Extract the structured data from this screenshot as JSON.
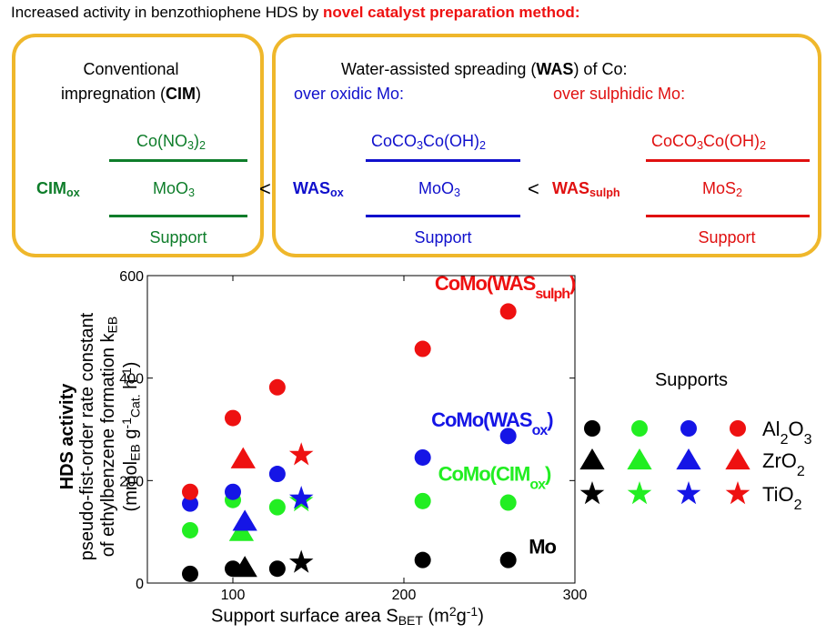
{
  "header": {
    "title_prefix": "Increased activity in benzothiophene HDS by ",
    "title_highlight": "novel catalyst preparation method:"
  },
  "cim_box": {
    "title_line1": "Conventional",
    "title_line2_prefix": "impregnation (",
    "title_line2_bold": "CIM",
    "title_line2_suffix": ")",
    "label_main": "CIM",
    "label_sub": "ox",
    "top_layer_a": "Co(NO",
    "top_layer_sub": "3",
    "top_layer_b": ")",
    "top_layer_sub2": "2",
    "mid_layer": "MoO",
    "mid_layer_sub": "3",
    "support": "Support"
  },
  "lt1": "<",
  "lt2": "<",
  "was_box": {
    "title_prefix": "Water-assisted spreading (",
    "title_bold": "WAS",
    "title_suffix": ") of Co:",
    "oxidic_label": "over oxidic Mo:",
    "sulphidic_label": "over sulphidic Mo:",
    "ox_label_main": "WAS",
    "ox_label_sub": "ox",
    "ox_top_a": "CoCO",
    "ox_top_sub": "3",
    "ox_top_b": "Co(OH)",
    "ox_top_sub2": "2",
    "ox_mid": "MoO",
    "ox_mid_sub": "3",
    "ox_support": "Support",
    "sulph_label_main": "WAS",
    "sulph_label_sub": "sulph",
    "sulph_top_a": "CoCO",
    "sulph_top_sub": "3",
    "sulph_top_b": "Co(OH)",
    "sulph_top_sub2": "2",
    "sulph_mid": "MoS",
    "sulph_mid_sub": "2",
    "sulph_support": "Support"
  },
  "colors": {
    "box_border": "#efb72b",
    "cim": "#0e7d2a",
    "black": "#000000",
    "green": "#22ee22",
    "blue": "#1515e6",
    "red": "#ee1111"
  },
  "chart_data": {
    "type": "scatter",
    "xlabel_prefix": "Support surface area S",
    "xlabel_sub": "BET",
    "xlabel_suffix_a": " (m",
    "xlabel_sup": "2",
    "xlabel_suffix_b": "g",
    "xlabel_sup2": "-1",
    "xlabel_suffix_c": ")",
    "ylabel_line1": "HDS activity",
    "ylabel_line2": "pseudo-fist-order rate constant",
    "ylabel_line3_prefix": "of ethylbenzene formation k",
    "ylabel_line3_sub": "EB",
    "ylabel_line4_a": "(mmol",
    "ylabel_line4_sub1": "EB",
    "ylabel_line4_b": " g",
    "ylabel_line4_sup1": "-1",
    "ylabel_line4_sub2": "Cat.",
    "ylabel_line4_c": " h",
    "ylabel_line4_sup2": "-1",
    "ylabel_line4_d": ")",
    "xlim": [
      50,
      300
    ],
    "ylim": [
      0,
      600
    ],
    "x_ticks": [
      100,
      200,
      300
    ],
    "x_tick_labels": [
      "100",
      "200",
      "300"
    ],
    "y_ticks": [
      0,
      200,
      400,
      600
    ],
    "y_tick_labels": [
      "0",
      "200",
      "400",
      "600"
    ],
    "annotations": [
      {
        "main": "CoMo(WAS",
        "sub": "sulph",
        "end": ")",
        "color": "#ee1111",
        "x": 218,
        "y": 572
      },
      {
        "main": "CoMo(WAS",
        "sub": "ox",
        "end": ")",
        "color": "#1515e6",
        "x": 216,
        "y": 305
      },
      {
        "main": "CoMo(CIM",
        "sub": "ox",
        "end": ")",
        "color": "#22ee22",
        "x": 220,
        "y": 200
      },
      {
        "main": "Mo",
        "sub": "",
        "end": "",
        "color": "#000000",
        "x": 273,
        "y": 58
      }
    ],
    "series": [
      {
        "catalyst": "Mo",
        "support": "Al2O3",
        "marker": "circle",
        "color": "#000000",
        "x": [
          75,
          100,
          126,
          211,
          261
        ],
        "y": [
          18,
          28,
          28,
          45,
          45
        ]
      },
      {
        "catalyst": "CoMo(CIMox)",
        "support": "Al2O3",
        "marker": "circle",
        "color": "#22ee22",
        "x": [
          75,
          100,
          126,
          211,
          261
        ],
        "y": [
          103,
          162,
          148,
          160,
          157
        ]
      },
      {
        "catalyst": "CoMo(WASox)",
        "support": "Al2O3",
        "marker": "circle",
        "color": "#1515e6",
        "x": [
          75,
          100,
          126,
          211,
          261
        ],
        "y": [
          155,
          178,
          213,
          245,
          287
        ]
      },
      {
        "catalyst": "CoMo(WASsulph)",
        "support": "Al2O3",
        "marker": "circle",
        "color": "#ee1111",
        "x": [
          75,
          100,
          126,
          211,
          261
        ],
        "y": [
          178,
          322,
          382,
          457,
          530
        ]
      },
      {
        "catalyst": "Mo",
        "support": "ZrO2",
        "marker": "triangle",
        "color": "#000000",
        "x": [
          107
        ],
        "y": [
          30
        ]
      },
      {
        "catalyst": "CoMo(CIMox)",
        "support": "ZrO2",
        "marker": "triangle",
        "color": "#22ee22",
        "x": [
          105
        ],
        "y": [
          100
        ]
      },
      {
        "catalyst": "CoMo(WASox)",
        "support": "ZrO2",
        "marker": "triangle",
        "color": "#1515e6",
        "x": [
          107
        ],
        "y": [
          120
        ]
      },
      {
        "catalyst": "CoMo(WASsulph)",
        "support": "ZrO2",
        "marker": "triangle",
        "color": "#ee1111",
        "x": [
          106
        ],
        "y": [
          242
        ]
      },
      {
        "catalyst": "Mo",
        "support": "TiO2",
        "marker": "star",
        "color": "#000000",
        "x": [
          140
        ],
        "y": [
          40
        ]
      },
      {
        "catalyst": "CoMo(CIMox)",
        "support": "TiO2",
        "marker": "star",
        "color": "#22ee22",
        "x": [
          140
        ],
        "y": [
          160
        ]
      },
      {
        "catalyst": "CoMo(WASox)",
        "support": "TiO2",
        "marker": "star",
        "color": "#1515e6",
        "x": [
          140
        ],
        "y": [
          165
        ]
      },
      {
        "catalyst": "CoMo(WASsulph)",
        "support": "TiO2",
        "marker": "star",
        "color": "#ee1111",
        "x": [
          140
        ],
        "y": [
          250
        ]
      }
    ],
    "legend": {
      "title": "Supports",
      "rows": [
        {
          "marker": "circle",
          "label_a": "Al",
          "label_sub1": "2",
          "label_b": "O",
          "label_sub2": "3"
        },
        {
          "marker": "triangle",
          "label_a": "ZrO",
          "label_sub1": "2",
          "label_b": "",
          "label_sub2": ""
        },
        {
          "marker": "star",
          "label_a": "TiO",
          "label_sub1": "2",
          "label_b": "",
          "label_sub2": ""
        }
      ],
      "colors": [
        "#000000",
        "#22ee22",
        "#1515e6",
        "#ee1111"
      ]
    }
  }
}
